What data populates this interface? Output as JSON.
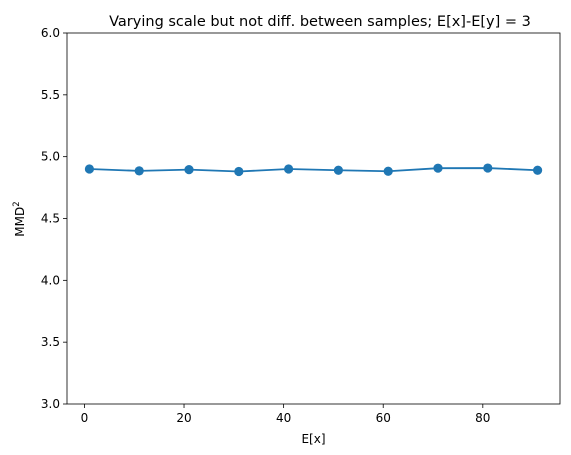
{
  "chart_data": {
    "type": "line",
    "title": "Varying scale but not diff. between samples; E[x]-E[y] = 3",
    "xlabel": "E[x]",
    "ylabel": "MMD",
    "ylabel_superscript": "2",
    "xlim": [
      -3.5,
      95.5
    ],
    "ylim": [
      3.0,
      6.0
    ],
    "xticks": [
      0,
      20,
      40,
      60,
      80
    ],
    "xtick_labels": [
      "0",
      "20",
      "40",
      "60",
      "80"
    ],
    "yticks": [
      3.0,
      3.5,
      4.0,
      4.5,
      5.0,
      5.5,
      6.0
    ],
    "ytick_labels": [
      "3.0",
      "3.5",
      "4.0",
      "4.5",
      "5.0",
      "5.5",
      "6.0"
    ],
    "grid": false,
    "legend": "none",
    "marker": "circle",
    "series": [
      {
        "x": [
          1,
          11,
          21,
          31,
          41,
          51,
          61,
          71,
          81,
          91
        ],
        "y": [
          4.9,
          4.885,
          4.895,
          4.88,
          4.9,
          4.89,
          4.882,
          4.907,
          4.908,
          4.89
        ],
        "color": "#1f77b4"
      }
    ]
  }
}
